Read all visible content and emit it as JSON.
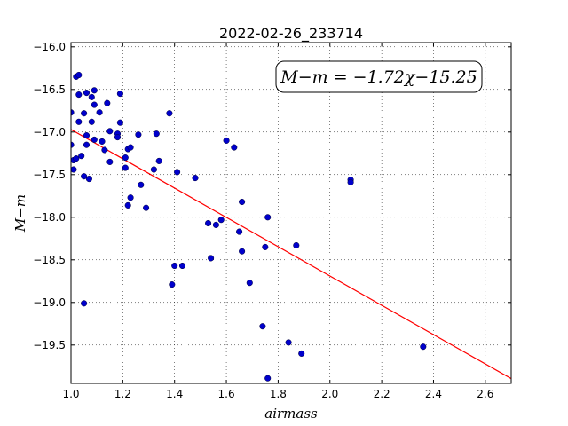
{
  "chart_data": {
    "type": "scatter",
    "title": "2022-02-26_233714",
    "xlabel": "airmass",
    "ylabel": "M−m",
    "xlim": [
      1.0,
      2.7
    ],
    "ylim": [
      -15.95,
      -19.95
    ],
    "y_inverted": true,
    "grid": true,
    "grid_style": "dotted",
    "x_ticks": [
      1.0,
      1.2,
      1.4,
      1.6,
      1.8,
      2.0,
      2.2,
      2.4,
      2.6
    ],
    "x_tick_labels": [
      "1.0",
      "1.2",
      "1.4",
      "1.6",
      "1.8",
      "2.0",
      "2.2",
      "2.4",
      "2.6"
    ],
    "y_ticks": [
      -16.0,
      -16.5,
      -17.0,
      -17.5,
      -18.0,
      -18.5,
      -19.0,
      -19.5
    ],
    "y_tick_labels": [
      "−16.0",
      "−16.5",
      "−17.0",
      "−17.5",
      "−18.0",
      "−18.5",
      "−19.0",
      "−19.5"
    ],
    "annotation": "M−m = −1.72χ−15.25",
    "annotation_position": "top-right",
    "series": [
      {
        "type": "scatter",
        "color": "#0000cc",
        "points": [
          [
            1.0,
            -16.77
          ],
          [
            1.0,
            -17.15
          ],
          [
            1.01,
            -17.33
          ],
          [
            1.01,
            -17.44
          ],
          [
            1.02,
            -16.35
          ],
          [
            1.03,
            -16.33
          ],
          [
            1.03,
            -16.56
          ],
          [
            1.03,
            -16.88
          ],
          [
            1.02,
            -17.31
          ],
          [
            1.04,
            -17.28
          ],
          [
            1.05,
            -16.78
          ],
          [
            1.05,
            -17.52
          ],
          [
            1.06,
            -16.54
          ],
          [
            1.06,
            -17.04
          ],
          [
            1.06,
            -17.15
          ],
          [
            1.07,
            -17.55
          ],
          [
            1.08,
            -16.59
          ],
          [
            1.08,
            -16.88
          ],
          [
            1.09,
            -16.51
          ],
          [
            1.09,
            -16.68
          ],
          [
            1.09,
            -17.09
          ],
          [
            1.11,
            -16.77
          ],
          [
            1.12,
            -17.11
          ],
          [
            1.13,
            -17.21
          ],
          [
            1.14,
            -16.66
          ],
          [
            1.15,
            -16.99
          ],
          [
            1.15,
            -17.35
          ],
          [
            1.18,
            -17.02
          ],
          [
            1.18,
            -17.06
          ],
          [
            1.19,
            -16.55
          ],
          [
            1.19,
            -16.89
          ],
          [
            1.21,
            -17.3
          ],
          [
            1.21,
            -17.42
          ],
          [
            1.22,
            -17.86
          ],
          [
            1.22,
            -17.2
          ],
          [
            1.23,
            -17.77
          ],
          [
            1.23,
            -17.18
          ],
          [
            1.26,
            -17.03
          ],
          [
            1.27,
            -17.62
          ],
          [
            1.29,
            -17.89
          ],
          [
            1.32,
            -17.44
          ],
          [
            1.33,
            -17.02
          ],
          [
            1.34,
            -17.34
          ],
          [
            1.38,
            -16.78
          ],
          [
            1.41,
            -17.47
          ],
          [
            1.39,
            -18.79
          ],
          [
            1.4,
            -18.57
          ],
          [
            1.43,
            -18.57
          ],
          [
            1.48,
            -17.54
          ],
          [
            1.53,
            -18.07
          ],
          [
            1.54,
            -18.48
          ],
          [
            1.56,
            -18.09
          ],
          [
            1.58,
            -18.03
          ],
          [
            1.6,
            -17.1
          ],
          [
            1.63,
            -17.18
          ],
          [
            1.65,
            -18.17
          ],
          [
            1.66,
            -17.82
          ],
          [
            1.66,
            -18.4
          ],
          [
            1.69,
            -18.77
          ],
          [
            1.74,
            -19.28
          ],
          [
            1.75,
            -18.35
          ],
          [
            1.76,
            -18.0
          ],
          [
            1.76,
            -19.89
          ],
          [
            1.84,
            -19.47
          ],
          [
            1.87,
            -18.33
          ],
          [
            1.89,
            -19.6
          ],
          [
            2.08,
            -17.56
          ],
          [
            2.08,
            -17.59
          ],
          [
            2.36,
            -19.52
          ],
          [
            1.05,
            -19.01
          ]
        ]
      },
      {
        "type": "line",
        "color": "#ff0000",
        "points": [
          [
            1.0,
            -16.97
          ],
          [
            2.7,
            -19.894
          ]
        ]
      }
    ]
  }
}
